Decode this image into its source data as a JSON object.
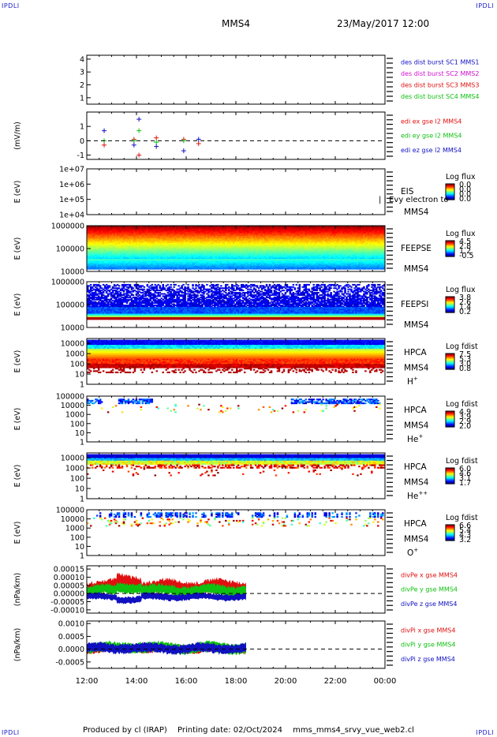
{
  "header": {
    "corner_label": "IPDLI",
    "spacecraft": "MMS4",
    "datetime": "23/May/2017 12:00"
  },
  "footer": {
    "produced_by": "Produced by cl (IRAP)",
    "printing_date": "Printing date: 02/Oct/2024",
    "filename": "mms_mms4_srvy_vue_web2.cl"
  },
  "colors": {
    "red": "#e01010",
    "magenta": "#d010d0",
    "green": "#10c010",
    "blue": "#1010c0",
    "axis": "#000000",
    "white": "#ffffff"
  },
  "chart_data": [
    {
      "type": "line",
      "id": "des-dist-burst",
      "ylabel": "",
      "ylim": [
        0.5,
        4.3
      ],
      "yticks": [
        "1",
        "2",
        "3",
        "4"
      ],
      "series": [
        {
          "name": "des dist burst SC1 MMS1",
          "color": "#1010c0",
          "values": []
        },
        {
          "name": "des dist burst SC2 MMS2",
          "color": "#d010d0",
          "values": []
        },
        {
          "name": "des dist burst SC3 MMS3",
          "color": "#e01010",
          "values": []
        },
        {
          "name": "des dist burst SC4 MMS4",
          "color": "#10c010",
          "values": []
        }
      ]
    },
    {
      "type": "scatter",
      "id": "edi-e-gse",
      "ylabel": "(mV/m)",
      "ylim": [
        -1.3,
        2.0
      ],
      "yticks": [
        "-1",
        "0",
        "1"
      ],
      "zero_line": true,
      "series": [
        {
          "name": "edi ex gse l2 MMS4",
          "color": "#e01010",
          "points": [
            [
              12.7,
              -0.3
            ],
            [
              13.9,
              0.1
            ],
            [
              14.1,
              -1.0
            ],
            [
              14.8,
              0.2
            ],
            [
              15.9,
              0.1
            ],
            [
              16.5,
              -0.2
            ]
          ]
        },
        {
          "name": "edi ey gse l2 MMS4",
          "color": "#10c010",
          "points": [
            [
              12.7,
              0.0
            ],
            [
              13.9,
              0.0
            ],
            [
              14.1,
              0.7
            ],
            [
              14.8,
              -0.1
            ],
            [
              15.9,
              0.0
            ]
          ]
        },
        {
          "name": "edi ez gse l2 MMS4",
          "color": "#1010c0",
          "points": [
            [
              12.7,
              0.7
            ],
            [
              13.9,
              -0.3
            ],
            [
              14.1,
              1.5
            ],
            [
              14.8,
              -0.4
            ],
            [
              15.9,
              -0.7
            ],
            [
              16.5,
              0.1
            ]
          ]
        }
      ]
    },
    {
      "type": "heatmap",
      "id": "eis",
      "ylabel": "E (eV)",
      "log": true,
      "ylim": [
        10000,
        10000000
      ],
      "yticks": [
        "1e+04",
        "1e+05",
        "1e+06",
        "1e+07"
      ],
      "side_labels": [
        "EIS",
        "MMS4"
      ],
      "overlay_text": "| | Evy electron to",
      "colorbar": {
        "title": "Log flux",
        "ticks": [
          "0.0",
          "0.0",
          "0.0",
          "0.0"
        ]
      },
      "pattern": "empty"
    },
    {
      "type": "heatmap",
      "id": "feeps-e",
      "ylabel": "E (eV)",
      "log": true,
      "ylim": [
        10000,
        1000000
      ],
      "yticks": [
        "10000",
        "100000",
        "1000000"
      ],
      "side_labels": [
        "FEEPSE",
        "MMS4"
      ],
      "colorbar": {
        "title": "Log flux",
        "ticks": [
          "4.5",
          "2.8",
          "1.2",
          "-0.5"
        ]
      },
      "pattern": "feepse"
    },
    {
      "type": "heatmap",
      "id": "feeps-i",
      "ylabel": "E (eV)",
      "log": true,
      "ylim": [
        10000,
        1000000
      ],
      "yticks": [
        "10000",
        "100000",
        "1000000"
      ],
      "side_labels": [
        "FEEPSI",
        "MMS4"
      ],
      "colorbar": {
        "title": "Log flux",
        "ticks": [
          "3.8",
          "2.6",
          "1.4",
          "0.2"
        ]
      },
      "pattern": "feepsi"
    },
    {
      "type": "heatmap",
      "id": "hpca-h",
      "ylabel": "E (eV)",
      "log": true,
      "ylim": [
        1,
        30000
      ],
      "yticks": [
        "1",
        "10",
        "100",
        "1000",
        "10000"
      ],
      "side_labels": [
        "HPCA",
        "MMS4"
      ],
      "species": "H",
      "species_sup": "+",
      "colorbar": {
        "title": "Log fdist",
        "ticks": [
          "7.5",
          "5.3",
          "3.0",
          "0.8"
        ]
      },
      "pattern": "hpca_h"
    },
    {
      "type": "heatmap",
      "id": "hpca-he",
      "ylabel": "E (eV)",
      "log": true,
      "ylim": [
        1,
        100000
      ],
      "yticks": [
        "1",
        "10",
        "100",
        "1000",
        "10000",
        "100000"
      ],
      "side_labels": [
        "HPCA",
        "MMS4"
      ],
      "species": "He",
      "species_sup": "+",
      "colorbar": {
        "title": "Log fdist",
        "ticks": [
          "4.9",
          "3.9",
          "2.9",
          "2.0"
        ]
      },
      "pattern": "hpca_he"
    },
    {
      "type": "heatmap",
      "id": "hpca-he2",
      "ylabel": "E (eV)",
      "log": true,
      "ylim": [
        1,
        30000
      ],
      "yticks": [
        "1",
        "10",
        "100",
        "1000",
        "10000"
      ],
      "side_labels": [
        "HPCA",
        "MMS4"
      ],
      "species": "He",
      "species_sup": "++",
      "colorbar": {
        "title": "Log fdist",
        "ticks": [
          "6.0",
          "4.6",
          "3.1",
          "1.7"
        ]
      },
      "pattern": "hpca_he2"
    },
    {
      "type": "heatmap",
      "id": "hpca-o",
      "ylabel": "E (eV)",
      "log": true,
      "ylim": [
        1,
        100000
      ],
      "yticks": [
        "1",
        "10",
        "100",
        "1000",
        "10000",
        "100000"
      ],
      "side_labels": [
        "HPCA",
        "MMS4"
      ],
      "species": "O",
      "species_sup": "+",
      "colorbar": {
        "title": "Log fdist",
        "ticks": [
          "6.6",
          "5.4",
          "4.3",
          "3.2"
        ]
      },
      "pattern": "hpca_o"
    },
    {
      "type": "line",
      "id": "divpe",
      "ylabel": "(nPa/km)",
      "ylim": [
        -0.00012,
        0.00017
      ],
      "yticks": [
        "-0.00010",
        "-0.00005",
        "0.00000",
        "0.00005",
        "0.00010",
        "0.00015"
      ],
      "zero_line": true,
      "data_end": 18.4,
      "series": [
        {
          "name": "divPe x gse MMS4",
          "color": "#e01010",
          "center": 4e-05,
          "spread": 4e-05
        },
        {
          "name": "divPe y gse MMS4",
          "color": "#10c010",
          "center": 2e-05,
          "spread": 3e-05
        },
        {
          "name": "divPe z gse MMS4",
          "color": "#1010c0",
          "center": -2e-05,
          "spread": 2e-05
        }
      ]
    },
    {
      "type": "line",
      "id": "divpi",
      "ylabel": "(nPa/km)",
      "ylim": [
        -0.00075,
        0.0011
      ],
      "yticks": [
        "-0.0005",
        "0.0000",
        "0.0005",
        "0.0010"
      ],
      "zero_line": true,
      "data_end": 18.4,
      "series": [
        {
          "name": "divPi x gse MMS4",
          "color": "#e01010",
          "center": 2e-05,
          "spread": 0.00015
        },
        {
          "name": "divPi y gse MMS4",
          "color": "#10c010",
          "center": 5e-05,
          "spread": 0.0002
        },
        {
          "name": "divPi z gse MMS4",
          "color": "#1010c0",
          "center": 3e-05,
          "spread": 0.00018
        }
      ]
    }
  ],
  "time_axis": {
    "range_hours": [
      12,
      24
    ],
    "ticks": [
      "12:00",
      "14:00",
      "16:00",
      "18:00",
      "20:00",
      "22:00",
      "00:00"
    ]
  }
}
